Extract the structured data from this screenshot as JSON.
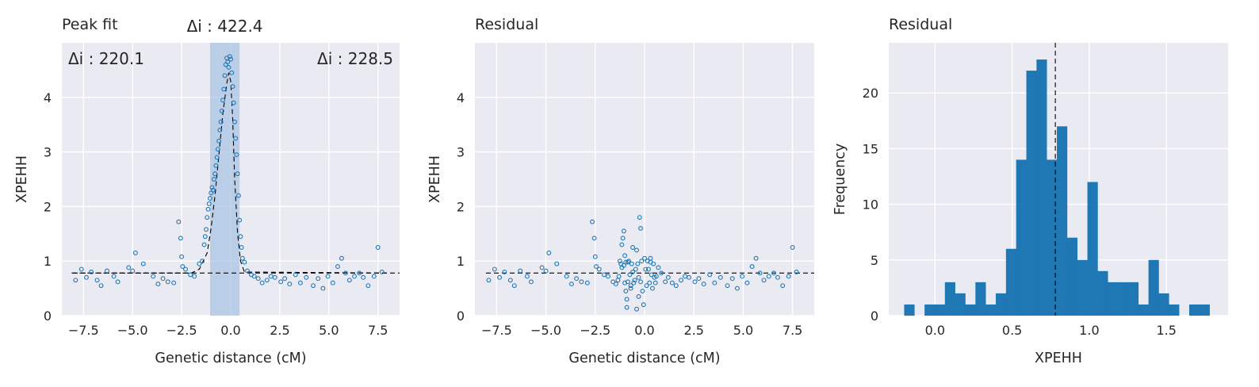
{
  "colors": {
    "background": "#eaeaf2",
    "grid": "#ffffff",
    "points": "#1f77b4",
    "bars": "#1f77b4",
    "highlight": "#a9c6e3",
    "fit_line": "#000000"
  },
  "chart_data": [
    {
      "type": "scatter",
      "title": "Peak fit",
      "xlabel": "Genetic distance (cM)",
      "ylabel": "XPEHH",
      "xlim": [
        -8.6,
        8.6
      ],
      "ylim": [
        0,
        5.0
      ],
      "xticks": [
        "−7.5",
        "−5.0",
        "−2.5",
        "0.0",
        "2.5",
        "5.0",
        "7.5"
      ],
      "yticks": [
        "0",
        "1",
        "2",
        "3",
        "4"
      ],
      "grid": true,
      "annotations": {
        "center": "Δi : 422.4",
        "left": "Δi : 220.1",
        "right": "Δi : 228.5"
      },
      "highlight_span": [
        -1.05,
        0.45
      ],
      "baseline": 0.78,
      "fit_curve": {
        "x": [
          -8.1,
          -2.0,
          -1.6,
          -1.2,
          -1.0,
          -0.8,
          -0.6,
          -0.4,
          -0.2,
          -0.1,
          0.0,
          0.1,
          0.2,
          0.35,
          0.5,
          0.7,
          8.1
        ],
        "y": [
          0.78,
          0.78,
          0.85,
          1.15,
          1.6,
          2.2,
          2.95,
          3.7,
          4.25,
          4.45,
          4.3,
          3.6,
          2.5,
          1.5,
          1.0,
          0.8,
          0.78
        ]
      },
      "points": {
        "x": [
          -7.9,
          -7.6,
          -7.35,
          -7.1,
          -6.8,
          -6.6,
          -6.3,
          -5.95,
          -5.75,
          -5.2,
          -5.0,
          -4.85,
          -4.45,
          -3.95,
          -3.7,
          -3.45,
          -3.2,
          -2.9,
          -2.65,
          -2.55,
          -2.5,
          -2.45,
          -2.3,
          -2.05,
          -1.85,
          -1.6,
          -1.45,
          -1.35,
          -1.3,
          -1.25,
          -1.2,
          -1.15,
          -1.1,
          -1.05,
          -1.0,
          -0.95,
          -0.9,
          -0.85,
          -0.8,
          -0.75,
          -0.7,
          -0.65,
          -0.6,
          -0.55,
          -0.5,
          -0.45,
          -0.4,
          -0.35,
          -0.3,
          -0.25,
          -0.2,
          -0.15,
          -0.1,
          -0.05,
          0.0,
          0.05,
          0.1,
          0.15,
          0.2,
          0.25,
          0.3,
          0.35,
          0.4,
          0.45,
          0.5,
          0.55,
          0.6,
          0.7,
          0.85,
          1.05,
          1.2,
          1.4,
          1.6,
          1.85,
          2.05,
          2.25,
          2.55,
          2.75,
          3.0,
          3.3,
          3.55,
          3.85,
          4.2,
          4.45,
          4.7,
          4.95,
          5.2,
          5.45,
          5.65,
          5.85,
          6.05,
          6.3,
          6.55,
          6.75,
          7.0,
          7.3,
          7.5,
          7.7
        ],
        "y": [
          0.65,
          0.85,
          0.7,
          0.8,
          0.65,
          0.55,
          0.82,
          0.72,
          0.62,
          0.88,
          0.82,
          1.15,
          0.95,
          0.72,
          0.58,
          0.68,
          0.62,
          0.6,
          1.72,
          1.42,
          1.08,
          0.9,
          0.85,
          0.75,
          0.72,
          0.95,
          1.0,
          1.3,
          1.45,
          1.58,
          1.8,
          1.95,
          2.05,
          2.15,
          2.25,
          2.35,
          2.3,
          2.5,
          2.6,
          2.75,
          2.9,
          3.05,
          3.2,
          3.4,
          3.55,
          3.75,
          3.95,
          4.15,
          4.4,
          4.6,
          4.72,
          4.65,
          4.55,
          4.75,
          4.7,
          4.45,
          4.2,
          3.9,
          3.55,
          3.25,
          2.95,
          2.6,
          2.2,
          1.75,
          1.45,
          1.25,
          1.05,
          0.98,
          0.82,
          0.75,
          0.72,
          0.68,
          0.6,
          0.65,
          0.72,
          0.7,
          0.62,
          0.68,
          0.58,
          0.75,
          0.6,
          0.7,
          0.55,
          0.68,
          0.5,
          0.72,
          0.6,
          0.9,
          1.05,
          0.78,
          0.65,
          0.72,
          0.78,
          0.7,
          0.55,
          0.72,
          1.25,
          0.8
        ]
      }
    },
    {
      "type": "scatter",
      "title": "Residual",
      "xlabel": "Genetic distance (cM)",
      "ylabel": "XPEHH",
      "xlim": [
        -8.6,
        8.6
      ],
      "ylim": [
        0,
        5.0
      ],
      "xticks": [
        "−7.5",
        "−5.0",
        "−2.5",
        "0.0",
        "2.5",
        "5.0",
        "7.5"
      ],
      "yticks": [
        "0",
        "1",
        "2",
        "3",
        "4"
      ],
      "grid": true,
      "baseline": 0.78,
      "points": {
        "x": [
          -7.9,
          -7.6,
          -7.35,
          -7.1,
          -6.8,
          -6.6,
          -6.3,
          -5.95,
          -5.75,
          -5.2,
          -5.0,
          -4.85,
          -4.45,
          -3.95,
          -3.7,
          -3.45,
          -3.2,
          -2.9,
          -2.65,
          -2.55,
          -2.5,
          -2.45,
          -2.3,
          -2.05,
          -1.85,
          -1.6,
          -1.45,
          -1.35,
          -1.3,
          -1.25,
          -1.2,
          -1.15,
          -1.1,
          -1.05,
          -1.05,
          -1.0,
          -1.0,
          -0.95,
          -0.9,
          -0.9,
          -0.85,
          -0.8,
          -0.75,
          -0.7,
          -0.65,
          -0.6,
          -0.55,
          -0.5,
          -0.45,
          -0.4,
          -0.35,
          -0.3,
          -0.25,
          -0.2,
          -0.15,
          -0.1,
          -0.05,
          0.0,
          0.05,
          0.1,
          0.15,
          0.2,
          0.25,
          0.3,
          0.35,
          0.4,
          0.45,
          0.5,
          0.55,
          0.6,
          0.7,
          0.85,
          1.05,
          1.2,
          1.4,
          1.6,
          1.85,
          2.05,
          2.25,
          2.55,
          2.75,
          3.0,
          3.3,
          3.55,
          3.85,
          4.2,
          4.45,
          4.7,
          4.95,
          5.2,
          5.45,
          5.65,
          5.85,
          6.05,
          6.3,
          6.55,
          6.75,
          7.0,
          7.3,
          7.5,
          7.7,
          -1.15,
          -0.95,
          -0.7,
          -0.4,
          -0.3,
          -0.2,
          -0.6,
          -0.85,
          0.3
        ],
        "y": [
          0.65,
          0.85,
          0.7,
          0.8,
          0.65,
          0.55,
          0.82,
          0.72,
          0.62,
          0.88,
          0.82,
          1.15,
          0.95,
          0.72,
          0.58,
          0.68,
          0.62,
          0.6,
          1.72,
          1.42,
          1.08,
          0.9,
          0.85,
          0.75,
          0.72,
          0.62,
          0.58,
          0.65,
          0.72,
          1.0,
          0.95,
          1.3,
          1.42,
          1.55,
          0.92,
          1.1,
          0.6,
          0.45,
          0.3,
          0.15,
          0.62,
          1.0,
          0.75,
          0.5,
          0.95,
          1.25,
          0.6,
          0.65,
          0.85,
          1.2,
          0.95,
          0.7,
          1.8,
          1.6,
          1.0,
          0.45,
          0.2,
          1.05,
          0.85,
          0.55,
          1.0,
          0.85,
          0.6,
          1.05,
          0.75,
          0.5,
          0.95,
          0.7,
          0.6,
          0.72,
          0.88,
          0.78,
          0.62,
          0.7,
          0.6,
          0.55,
          0.65,
          0.72,
          0.7,
          0.62,
          0.68,
          0.58,
          0.75,
          0.6,
          0.7,
          0.55,
          0.68,
          0.5,
          0.72,
          0.6,
          0.9,
          1.05,
          0.78,
          0.65,
          0.72,
          0.78,
          0.7,
          0.55,
          0.72,
          1.25,
          0.8,
          0.88,
          0.98,
          0.55,
          0.12,
          0.35,
          0.62,
          0.8,
          0.98,
          0.98
        ]
      }
    },
    {
      "type": "bar",
      "title": "Residual",
      "xlabel": "XPEHH",
      "ylabel": "Frequency",
      "xlim": [
        -0.3,
        1.9
      ],
      "ylim": [
        0,
        24.5
      ],
      "xticks": [
        "0.0",
        "0.5",
        "1.0",
        "1.5"
      ],
      "yticks": [
        "0",
        "5",
        "10",
        "15",
        "20"
      ],
      "grid": true,
      "vline": 0.78,
      "bin_edges": [
        -0.2,
        -0.134,
        -0.068,
        -0.002,
        0.064,
        0.13,
        0.196,
        0.262,
        0.328,
        0.394,
        0.46,
        0.526,
        0.592,
        0.658,
        0.724,
        0.79,
        0.856,
        0.922,
        0.988,
        1.054,
        1.12,
        1.186,
        1.252,
        1.318,
        1.384,
        1.45,
        1.516,
        1.582,
        1.648,
        1.714,
        1.78
      ],
      "values": [
        1,
        0,
        1,
        1,
        3,
        2,
        1,
        3,
        1,
        2,
        6,
        14,
        22,
        23,
        14,
        17,
        7,
        5,
        12,
        4,
        3,
        3,
        3,
        1,
        5,
        2,
        1,
        0,
        1,
        1
      ]
    }
  ]
}
